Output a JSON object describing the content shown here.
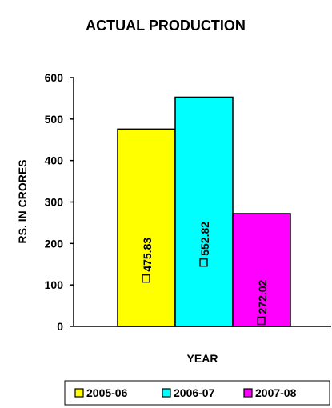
{
  "chart_data": {
    "type": "bar",
    "title": "ACTUAL PRODUCTION",
    "xlabel": "YEAR",
    "ylabel": "RS. IN CRORES",
    "ylim": [
      0,
      600
    ],
    "yticks": [
      0,
      100,
      200,
      300,
      400,
      500,
      600
    ],
    "categories": [
      ""
    ],
    "series": [
      {
        "name": "2005-06",
        "values": [
          475.83
        ],
        "label": "475.83",
        "color": "#FFFF00"
      },
      {
        "name": "2006-07",
        "values": [
          552.82
        ],
        "label": "552.82",
        "color": "#00FFFF"
      },
      {
        "name": "2007-08",
        "values": [
          272.02
        ],
        "label": "272.02",
        "color": "#FF00FF"
      }
    ],
    "legend_position": "bottom",
    "grid": false
  }
}
